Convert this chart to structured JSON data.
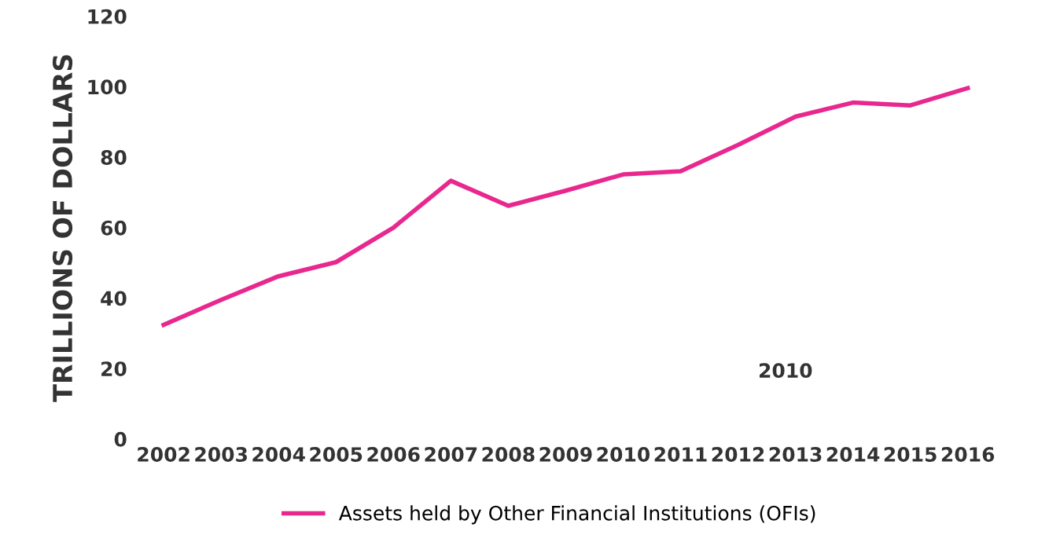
{
  "chart_data": {
    "type": "line",
    "ylabel": "TRILLIONS OF DOLLARS",
    "categories": [
      "2002",
      "2003",
      "2004",
      "2005",
      "2006",
      "2007",
      "2008",
      "2009",
      "2010",
      "2011",
      "2012",
      "2013",
      "2014",
      "2015",
      "2016"
    ],
    "series": [
      {
        "name": "Assets held by Other Financial Institutions (OFIs)",
        "color": "#e8288e",
        "values": [
          32.4,
          39.5,
          46.2,
          50.2,
          60,
          73.3,
          66.2,
          70.5,
          75.1,
          76,
          83.5,
          91.5,
          95.5,
          94.7,
          99.6
        ]
      }
    ],
    "ylim": [
      0,
      120
    ],
    "yticks": [
      0,
      20,
      40,
      60,
      80,
      100,
      120
    ],
    "grid": false,
    "legend": "bottom",
    "marker": "none",
    "line_style": "solid",
    "annotations": [
      "2010"
    ]
  }
}
